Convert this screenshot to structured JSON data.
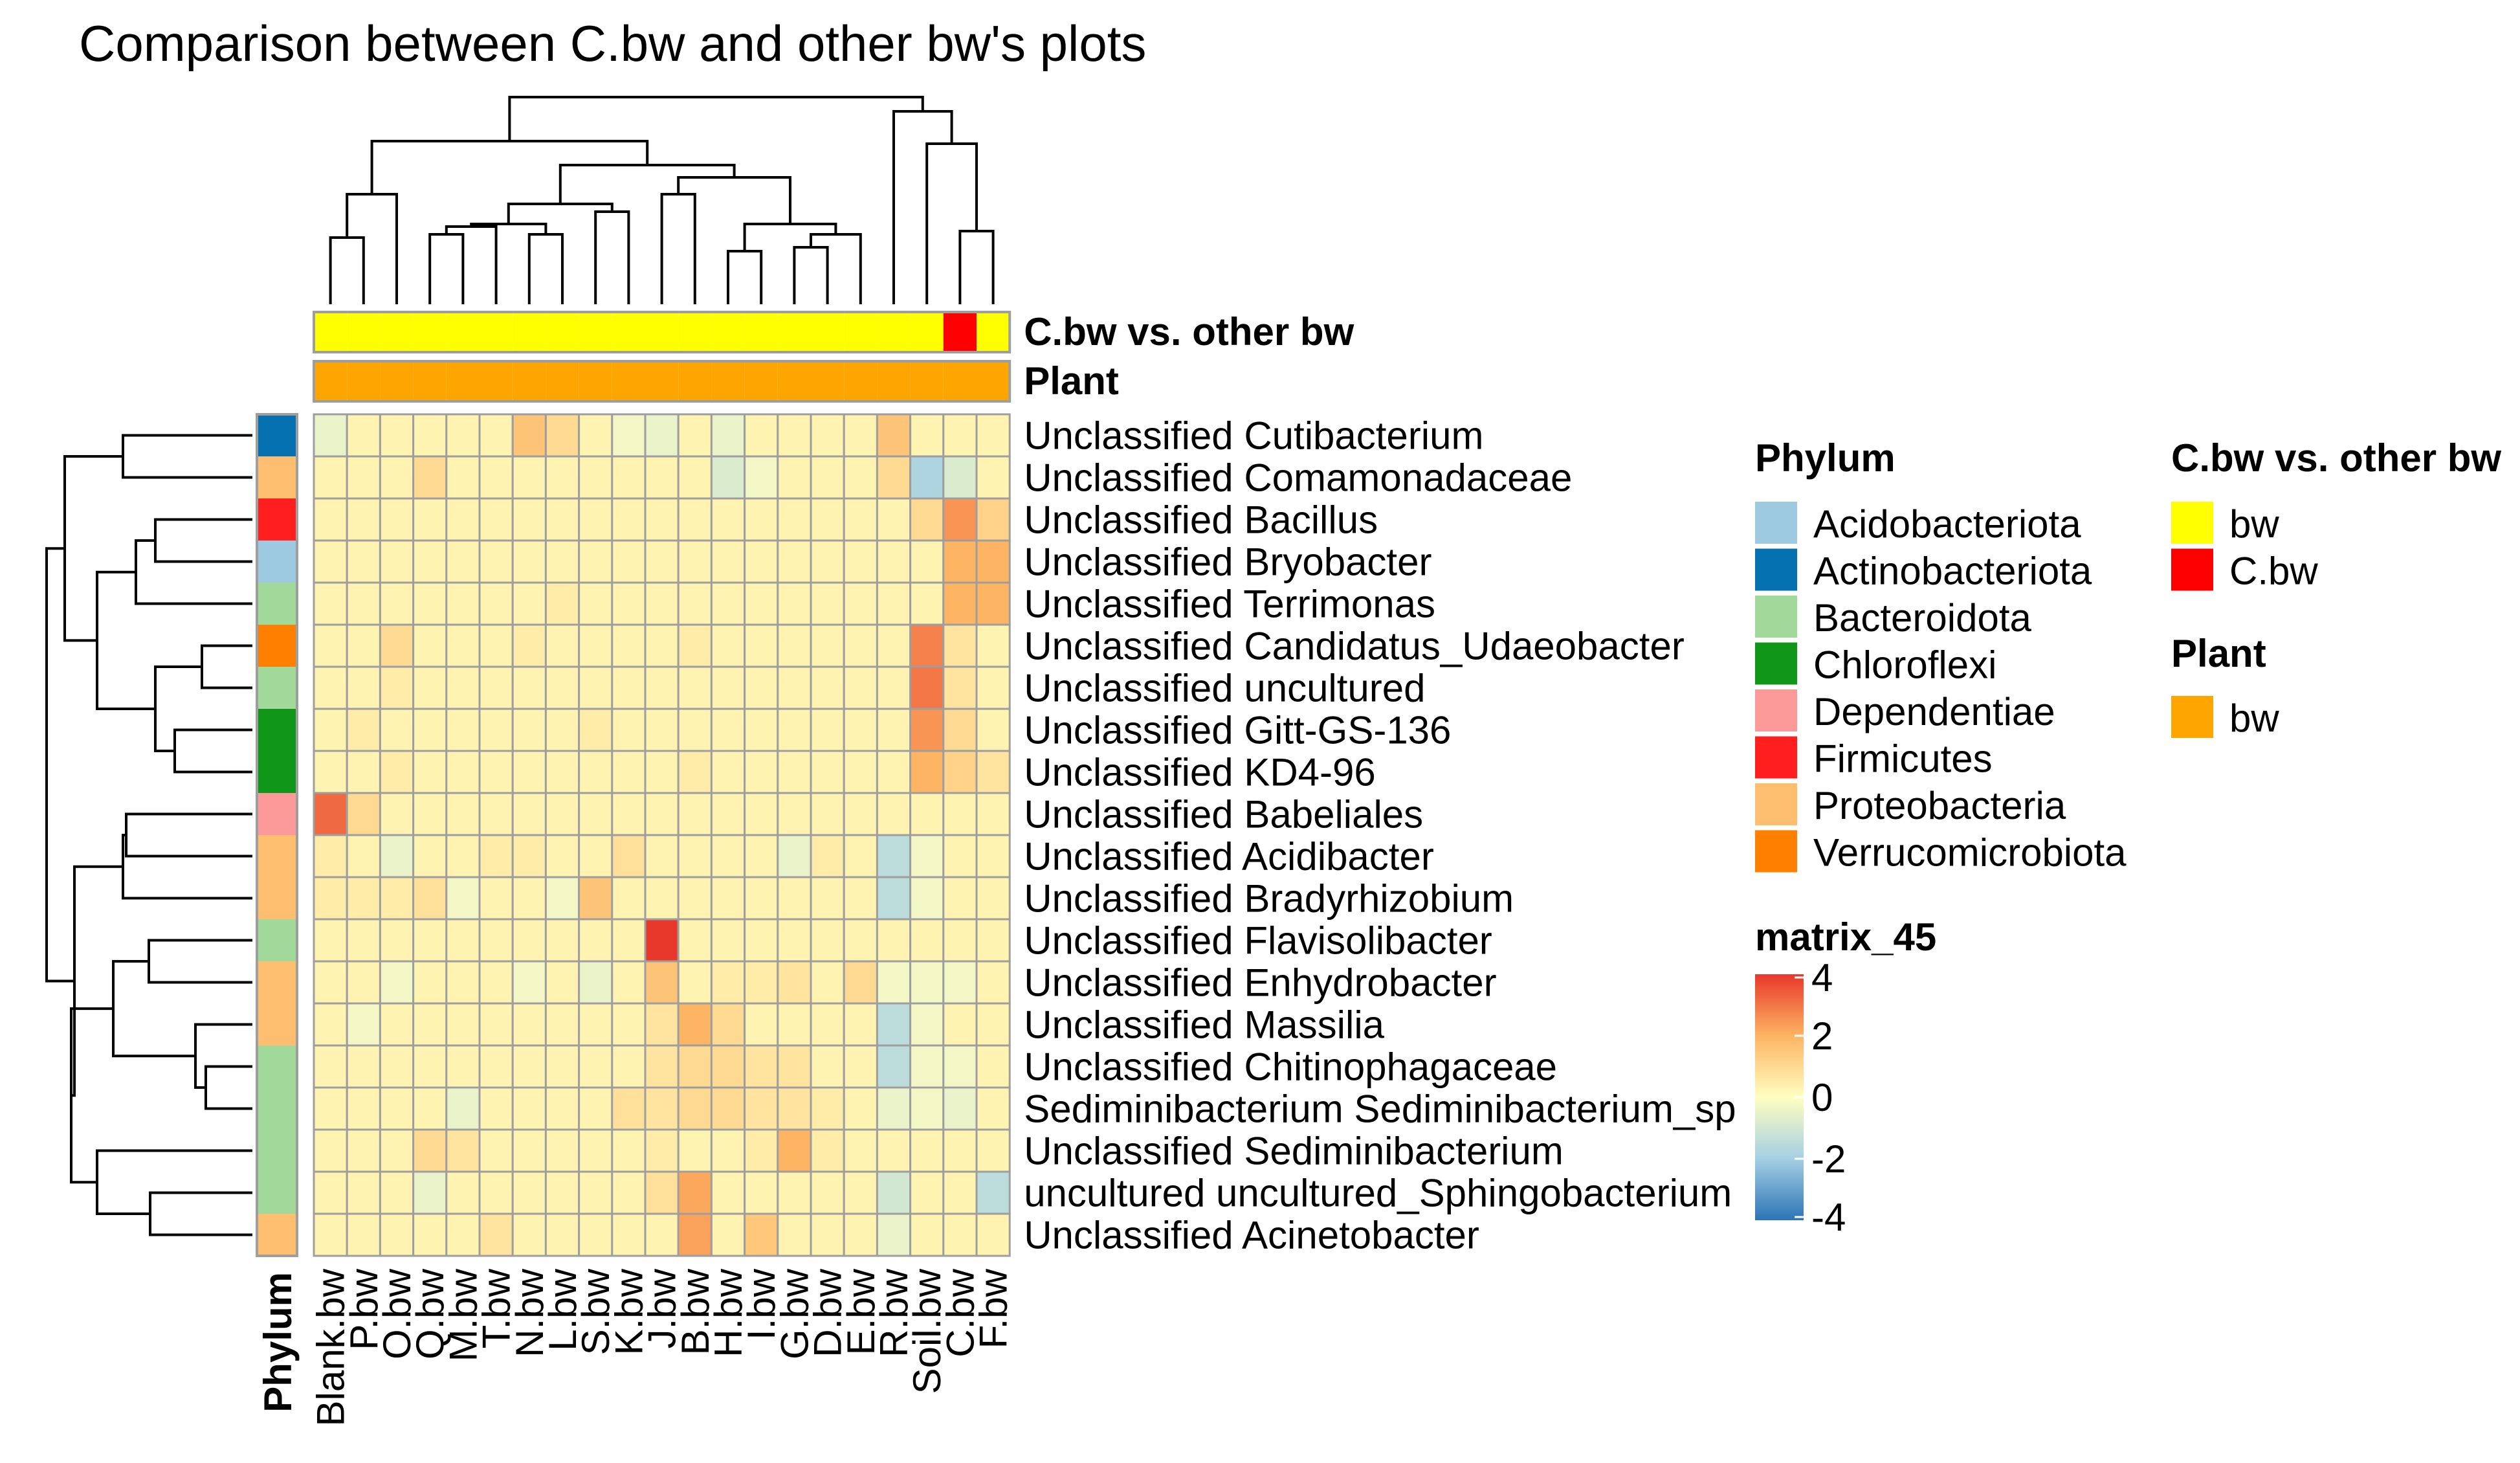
{
  "chart_data": {
    "type": "heatmap",
    "title": "Comparison between C.bw and other bw's plots",
    "columns": [
      "Blank.bw",
      "P.bw",
      "O.bw",
      "Q.bw",
      "M.bw",
      "T.bw",
      "N.bw",
      "L.bw",
      "S.bw",
      "K.bw",
      "J.bw",
      "B.bw",
      "H.bw",
      "I.bw",
      "G.bw",
      "D.bw",
      "E.bw",
      "R.bw",
      "Soil.bw",
      "C.bw",
      "F.bw"
    ],
    "rows": [
      "Unclassified  Cutibacterium",
      "Unclassified Comamonadaceae",
      "Unclassified  Bacillus",
      "Unclassified  Bryobacter",
      "Unclassified  Terrimonas",
      "Unclassified  Candidatus_Udaeobacter",
      "Unclassified  uncultured",
      "Unclassified  Gitt-GS-136",
      "Unclassified  KD4-96",
      "Unclassified Babeliales",
      "Unclassified  Acidibacter",
      "Unclassified  Bradyrhizobium",
      "Unclassified  Flavisolibacter",
      "Unclassified  Enhydrobacter",
      "Unclassified  Massilia",
      "Unclassified Chitinophagaceae",
      "Sediminibacterium Sediminibacterium_sp",
      "Unclassified  Sediminibacterium",
      "uncultured uncultured_Sphingobacterium",
      "Unclassified  Acinetobacter"
    ],
    "row_phylum": [
      "Actinobacteriota",
      "Proteobacteria",
      "Firmicutes",
      "Acidobacteriota",
      "Bacteroidota",
      "Verrucomicrobiota",
      "Bacteroidota",
      "Chloroflexi",
      "Chloroflexi",
      "Dependentiae",
      "Proteobacteria",
      "Proteobacteria",
      "Bacteroidota",
      "Proteobacteria",
      "Proteobacteria",
      "Bacteroidota",
      "Bacteroidota",
      "Bacteroidota",
      "Bacteroidota",
      "Proteobacteria"
    ],
    "values": [
      [
        -0.5,
        0.3,
        0.3,
        0.3,
        0.3,
        0.3,
        1.6,
        1.0,
        0.3,
        -0.3,
        -0.5,
        0.3,
        -0.5,
        0.3,
        0.3,
        0.3,
        0.3,
        1.6,
        0.3,
        0.3,
        0.3
      ],
      [
        0.3,
        0.3,
        0.3,
        1.0,
        0.3,
        0.3,
        0.3,
        0.3,
        0.3,
        0.3,
        0.3,
        0.3,
        -0.8,
        -0.3,
        0.3,
        0.3,
        0.3,
        1.0,
        -1.8,
        -0.8,
        0.3
      ],
      [
        0.3,
        0.3,
        0.3,
        0.3,
        0.3,
        0.3,
        0.3,
        0.3,
        0.3,
        0.3,
        0.3,
        0.3,
        0.3,
        0.3,
        0.3,
        0.3,
        0.3,
        0.3,
        1.0,
        2.5,
        1.2
      ],
      [
        0.3,
        0.3,
        0.3,
        0.3,
        0.3,
        0.3,
        0.3,
        0.3,
        0.3,
        0.3,
        0.3,
        0.3,
        0.3,
        0.3,
        0.3,
        0.3,
        0.3,
        0.3,
        0.3,
        2.0,
        2.0
      ],
      [
        0.3,
        0.3,
        0.3,
        0.3,
        0.3,
        0.3,
        0.3,
        0.5,
        0.3,
        0.3,
        0.3,
        0.3,
        0.3,
        0.3,
        0.3,
        0.3,
        0.3,
        0.3,
        0.3,
        2.0,
        2.0
      ],
      [
        0.3,
        0.3,
        1.0,
        0.3,
        0.3,
        0.3,
        0.5,
        0.3,
        0.3,
        0.3,
        0.3,
        0.5,
        0.3,
        0.3,
        0.3,
        0.3,
        0.3,
        0.3,
        2.8,
        0.7,
        0.3
      ],
      [
        0.3,
        0.3,
        0.5,
        0.3,
        0.3,
        0.3,
        0.3,
        0.3,
        0.3,
        0.3,
        0.3,
        0.3,
        0.3,
        0.3,
        0.3,
        0.3,
        0.3,
        0.3,
        3.0,
        0.7,
        0.3
      ],
      [
        0.3,
        0.5,
        0.3,
        0.3,
        0.3,
        0.3,
        0.3,
        0.3,
        0.5,
        0.3,
        0.3,
        0.3,
        0.3,
        0.3,
        0.3,
        0.3,
        0.3,
        0.3,
        2.5,
        1.0,
        0.3
      ],
      [
        0.3,
        0.3,
        0.5,
        0.3,
        0.3,
        0.3,
        0.3,
        0.3,
        0.3,
        0.3,
        0.3,
        0.5,
        0.3,
        0.3,
        0.3,
        0.3,
        0.3,
        0.3,
        2.0,
        1.2,
        0.7
      ],
      [
        3.2,
        1.0,
        0.3,
        0.3,
        0.3,
        0.3,
        0.3,
        0.3,
        0.3,
        0.3,
        0.3,
        0.3,
        0.3,
        0.3,
        0.3,
        0.3,
        0.3,
        0.3,
        0.3,
        0.3,
        0.3
      ],
      [
        0.5,
        0.3,
        -0.5,
        0.3,
        0.3,
        0.5,
        0.5,
        0.3,
        0.3,
        0.8,
        0.3,
        0.3,
        0.3,
        0.3,
        -0.5,
        0.5,
        0.3,
        -1.5,
        -0.3,
        0.3,
        0.3
      ],
      [
        0.5,
        0.5,
        0.5,
        0.8,
        -0.3,
        0.3,
        0.3,
        -0.3,
        1.6,
        0.3,
        0.3,
        0.3,
        0.3,
        0.3,
        0.3,
        0.3,
        0.3,
        -1.5,
        -0.3,
        0.3,
        0.3
      ],
      [
        0.3,
        0.3,
        0.3,
        0.3,
        0.3,
        0.3,
        0.3,
        0.3,
        0.3,
        0.3,
        4.0,
        0.3,
        0.3,
        0.3,
        0.3,
        0.3,
        0.3,
        0.3,
        0.3,
        0.3,
        0.3
      ],
      [
        0.3,
        0.3,
        -0.3,
        0.3,
        0.3,
        0.3,
        -0.3,
        0.3,
        -0.5,
        0.3,
        1.6,
        0.3,
        0.5,
        0.5,
        0.7,
        0.3,
        1.0,
        -0.3,
        -0.3,
        -0.3,
        0.3
      ],
      [
        0.3,
        -0.3,
        0.3,
        0.3,
        0.3,
        0.3,
        0.3,
        0.3,
        0.3,
        0.3,
        0.7,
        2.0,
        1.0,
        0.3,
        0.3,
        0.3,
        0.3,
        -1.5,
        -0.3,
        0.3,
        0.3
      ],
      [
        0.3,
        0.3,
        0.3,
        0.3,
        0.3,
        0.3,
        0.3,
        0.3,
        0.3,
        0.3,
        0.7,
        1.0,
        1.0,
        0.7,
        0.7,
        0.3,
        0.3,
        -1.5,
        -0.3,
        -0.3,
        0.3
      ],
      [
        0.3,
        0.3,
        0.3,
        0.3,
        -0.5,
        0.3,
        0.3,
        0.3,
        0.3,
        0.8,
        0.7,
        1.0,
        1.0,
        0.7,
        0.7,
        0.5,
        0.3,
        -0.5,
        -0.3,
        -0.5,
        0.3
      ],
      [
        0.3,
        0.3,
        0.3,
        1.0,
        0.7,
        0.3,
        0.3,
        0.3,
        0.3,
        0.3,
        0.5,
        0.3,
        0.3,
        0.5,
        2.0,
        0.5,
        0.3,
        0.3,
        0.3,
        0.3,
        0.3
      ],
      [
        0.3,
        0.3,
        0.3,
        -0.5,
        0.3,
        0.3,
        0.3,
        0.3,
        0.3,
        0.3,
        0.8,
        2.2,
        0.3,
        0.3,
        0.3,
        0.3,
        0.3,
        -1.0,
        0.3,
        0.3,
        -1.5
      ],
      [
        0.3,
        0.3,
        0.3,
        0.3,
        0.3,
        0.7,
        0.3,
        0.3,
        0.3,
        0.3,
        0.3,
        2.3,
        0.3,
        1.5,
        0.3,
        0.3,
        0.3,
        -0.5,
        0.3,
        0.3,
        0.3
      ]
    ],
    "column_annotations": [
      {
        "name": "C.bw vs. other bw",
        "values": [
          "bw",
          "bw",
          "bw",
          "bw",
          "bw",
          "bw",
          "bw",
          "bw",
          "bw",
          "bw",
          "bw",
          "bw",
          "bw",
          "bw",
          "bw",
          "bw",
          "bw",
          "bw",
          "bw",
          "C.bw",
          "bw"
        ]
      },
      {
        "name": "Plant",
        "values": [
          "bw",
          "bw",
          "bw",
          "bw",
          "bw",
          "bw",
          "bw",
          "bw",
          "bw",
          "bw",
          "bw",
          "bw",
          "bw",
          "bw",
          "bw",
          "bw",
          "bw",
          "bw",
          "bw",
          "bw",
          "bw"
        ]
      }
    ],
    "row_annotation_label": "Phylum",
    "legends": {
      "phylum": {
        "title": "Phylum",
        "items": [
          {
            "label": "Acidobacteriota",
            "color": "#9ecae1"
          },
          {
            "label": "Actinobacteriota",
            "color": "#0571b0"
          },
          {
            "label": "Bacteroidota",
            "color": "#a1d99b"
          },
          {
            "label": "Chloroflexi",
            "color": "#109618"
          },
          {
            "label": "Dependentiae",
            "color": "#fb9a99"
          },
          {
            "label": "Firmicutes",
            "color": "#ff1f1f"
          },
          {
            "label": "Proteobacteria",
            "color": "#fdbf6f"
          },
          {
            "label": "Verrucomicrobiota",
            "color": "#ff7f00"
          }
        ]
      },
      "comparison": {
        "title": "C.bw vs. other bw",
        "items": [
          {
            "label": "bw",
            "color": "#ffff00"
          },
          {
            "label": "C.bw",
            "color": "#ff0000"
          }
        ]
      },
      "plant": {
        "title": "Plant",
        "items": [
          {
            "label": "bw",
            "color": "#ffa500"
          }
        ]
      },
      "matrix": {
        "title": "matrix_45",
        "ticks": [
          4,
          2,
          0,
          -2,
          -4
        ],
        "range": [
          -4,
          4
        ]
      }
    }
  }
}
